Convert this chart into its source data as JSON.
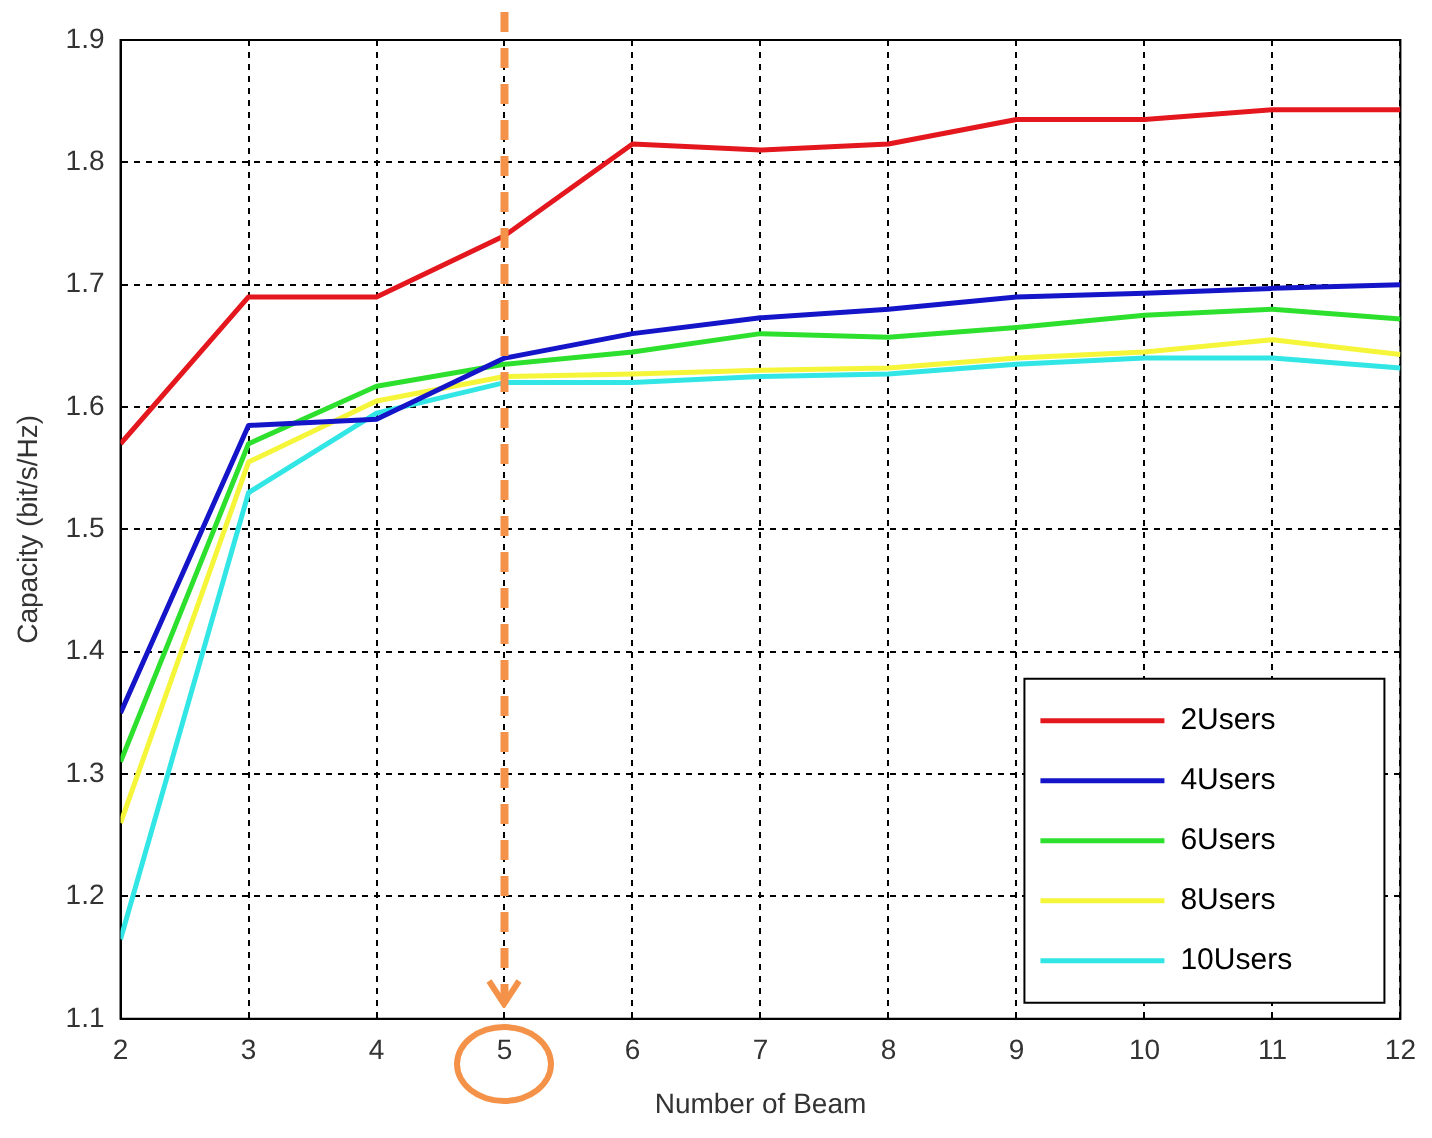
{
  "chart_data": {
    "type": "line",
    "xlabel": "Number of Beam",
    "ylabel": "Capacity (bit/s/Hz)",
    "x": [
      2,
      3,
      4,
      5,
      6,
      7,
      8,
      9,
      10,
      11,
      12
    ],
    "xlim": [
      2,
      12
    ],
    "xticks": [
      2,
      3,
      4,
      5,
      6,
      7,
      8,
      9,
      10,
      11,
      12
    ],
    "ylim": [
      1.1,
      1.9
    ],
    "yticks": [
      1.1,
      1.2,
      1.3,
      1.4,
      1.5,
      1.6,
      1.7,
      1.8,
      1.9
    ],
    "grid": true,
    "legend": "bottom right",
    "marker": "none",
    "line_style": "solid",
    "ref_lines": [
      {
        "axis": "x",
        "value": 5,
        "color": "#f4924a",
        "line_style": "dashed"
      }
    ],
    "series": [
      {
        "name": "2Users",
        "color": "#e3171d",
        "values": [
          1.57,
          1.69,
          1.69,
          1.74,
          1.815,
          1.81,
          1.815,
          1.835,
          1.835,
          1.843,
          1.843
        ]
      },
      {
        "name": "4Users",
        "color": "#1414c8",
        "values": [
          1.35,
          1.585,
          1.59,
          1.64,
          1.66,
          1.673,
          1.68,
          1.69,
          1.693,
          1.697,
          1.7
        ]
      },
      {
        "name": "6Users",
        "color": "#2ee02e",
        "values": [
          1.31,
          1.57,
          1.617,
          1.635,
          1.645,
          1.66,
          1.657,
          1.665,
          1.675,
          1.68,
          1.672
        ]
      },
      {
        "name": "8Users",
        "color": "#f5f53a",
        "values": [
          1.26,
          1.555,
          1.605,
          1.625,
          1.627,
          1.63,
          1.632,
          1.64,
          1.645,
          1.655,
          1.643
        ]
      },
      {
        "name": "10Users",
        "color": "#33e6e6",
        "values": [
          1.165,
          1.53,
          1.595,
          1.62,
          1.62,
          1.625,
          1.627,
          1.635,
          1.64,
          1.64,
          1.632
        ]
      }
    ]
  }
}
